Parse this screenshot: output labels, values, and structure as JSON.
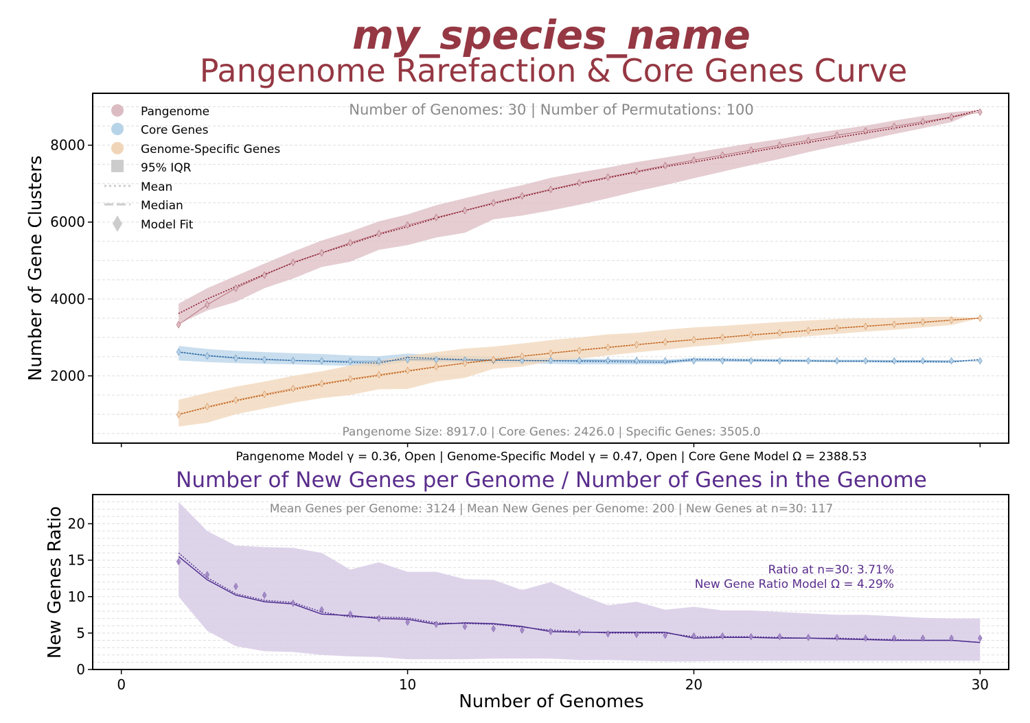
{
  "title": "my_species_name",
  "subtitle": "Pangenome Rarefaction & Core Genes Curve",
  "colors": {
    "title": "#953843",
    "pangenome_band": "#dcbcc3",
    "pangenome_line": "#8b1a2a",
    "core_band": "#b7d3e8",
    "core_line": "#1f5f9e",
    "specific_band": "#f0d5b8",
    "specific_line": "#c05a10",
    "ratio_band": "#d8cce6",
    "ratio_line": "#4b2a8c",
    "ratio_title": "#5a2d8c",
    "info_text": "#888888",
    "grid": "#dddddd"
  },
  "chart_data": [
    {
      "type": "line",
      "panel": "top",
      "ylabel": "Number of Gene Clusters",
      "info_top": "Number of Genomes: 30  |  Number of Permutations: 100",
      "info_bottom": "Pangenome Size: 8917.0  |  Core Genes: 2426.0  |  Specific Genes: 3505.0",
      "model_text": "Pangenome Model γ = 0.36, Open  |  Genome-Specific Model γ = 0.47, Open  |  Core Gene Model Ω = 2388.53",
      "xlim": [
        -1,
        31
      ],
      "ylim": [
        250,
        9350
      ],
      "yticks": [
        2000,
        4000,
        6000,
        8000
      ],
      "grid": true,
      "legend_position": "top-left",
      "legend": [
        "Pangenome",
        "Core Genes",
        "Genome-Specific Genes",
        "95% IQR",
        "Mean",
        "Median",
        "Model Fit"
      ],
      "x": [
        2,
        3,
        4,
        5,
        6,
        7,
        8,
        9,
        10,
        11,
        12,
        13,
        14,
        15,
        16,
        17,
        18,
        19,
        20,
        21,
        22,
        23,
        24,
        25,
        26,
        27,
        28,
        29,
        30
      ],
      "series": [
        {
          "name": "Pangenome",
          "mean": [
            3620,
            4000,
            4320,
            4640,
            4940,
            5200,
            5430,
            5680,
            5880,
            6100,
            6300,
            6480,
            6660,
            6840,
            7000,
            7150,
            7300,
            7440,
            7560,
            7690,
            7820,
            7950,
            8070,
            8200,
            8320,
            8440,
            8570,
            8730,
            8917
          ],
          "lower": [
            3350,
            3700,
            3920,
            4280,
            4530,
            4830,
            4970,
            5280,
            5400,
            5600,
            5720,
            6070,
            6170,
            6300,
            6450,
            6620,
            6800,
            6960,
            7140,
            7310,
            7480,
            7640,
            7820,
            7980,
            8130,
            8290,
            8440,
            8600,
            8917
          ],
          "upper": [
            3880,
            4280,
            4600,
            4920,
            5230,
            5520,
            5750,
            6020,
            6200,
            6440,
            6620,
            6800,
            6960,
            7150,
            7290,
            7420,
            7560,
            7680,
            7800,
            7930,
            8050,
            8160,
            8290,
            8400,
            8510,
            8640,
            8760,
            8860,
            8917
          ],
          "model": [
            3330,
            3850,
            4280,
            4620,
            4950,
            5200,
            5460,
            5700,
            5920,
            6120,
            6300,
            6500,
            6680,
            6850,
            7020,
            7170,
            7320,
            7470,
            7610,
            7740,
            7870,
            8000,
            8120,
            8260,
            8370,
            8490,
            8610,
            8730,
            8860
          ]
        },
        {
          "name": "Core Genes",
          "mean": [
            2620,
            2530,
            2470,
            2430,
            2400,
            2380,
            2350,
            2330,
            2480,
            2450,
            2420,
            2410,
            2400,
            2390,
            2380,
            2370,
            2360,
            2350,
            2430,
            2420,
            2410,
            2400,
            2390,
            2380,
            2380,
            2370,
            2370,
            2360,
            2426
          ],
          "lower": [
            2400,
            2360,
            2330,
            2310,
            2300,
            2280,
            2260,
            2250,
            2380,
            2360,
            2340,
            2330,
            2320,
            2310,
            2300,
            2300,
            2300,
            2300,
            2380,
            2380,
            2370,
            2360,
            2360,
            2350,
            2350,
            2340,
            2340,
            2340,
            2426
          ],
          "upper": [
            2780,
            2700,
            2650,
            2620,
            2590,
            2570,
            2530,
            2510,
            2580,
            2540,
            2520,
            2500,
            2480,
            2460,
            2450,
            2440,
            2430,
            2420,
            2470,
            2460,
            2450,
            2440,
            2430,
            2420,
            2420,
            2410,
            2410,
            2400,
            2426
          ],
          "model": [
            2620,
            2520,
            2460,
            2420,
            2400,
            2390,
            2380,
            2380,
            2420,
            2420,
            2410,
            2400,
            2400,
            2400,
            2400,
            2400,
            2400,
            2390,
            2390,
            2390,
            2390,
            2390,
            2390,
            2390,
            2390,
            2390,
            2390,
            2390,
            2390
          ]
        },
        {
          "name": "Genome-Specific Genes",
          "mean": [
            1000,
            1180,
            1350,
            1500,
            1640,
            1780,
            1900,
            2010,
            2120,
            2230,
            2330,
            2420,
            2510,
            2590,
            2670,
            2740,
            2810,
            2880,
            2940,
            3000,
            3060,
            3120,
            3180,
            3240,
            3290,
            3340,
            3390,
            3450,
            3505
          ],
          "lower": [
            680,
            780,
            1000,
            1150,
            1300,
            1420,
            1500,
            1650,
            1660,
            1850,
            1950,
            2180,
            2240,
            2380,
            2450,
            2530,
            2610,
            2680,
            2760,
            2820,
            2900,
            2970,
            3030,
            3090,
            3150,
            3200,
            3260,
            3320,
            3505
          ],
          "upper": [
            1380,
            1560,
            1720,
            1850,
            2000,
            2120,
            2270,
            2390,
            2520,
            2620,
            2710,
            2760,
            2840,
            2930,
            3000,
            3080,
            3120,
            3200,
            3260,
            3300,
            3350,
            3400,
            3440,
            3480,
            3500,
            3510,
            3530,
            3540,
            3505
          ],
          "model": [
            990,
            1200,
            1370,
            1520,
            1670,
            1800,
            1920,
            2030,
            2140,
            2240,
            2330,
            2420,
            2510,
            2590,
            2660,
            2740,
            2810,
            2880,
            2940,
            3000,
            3070,
            3120,
            3180,
            3240,
            3290,
            3340,
            3400,
            3450,
            3500
          ]
        }
      ]
    },
    {
      "type": "line",
      "panel": "bottom",
      "title": "Number of New Genes per Genome / Number of Genes in the Genome",
      "ylabel": "New Genes Ratio",
      "xlabel": "Number of Genomes",
      "info_top": "Mean Genes per Genome: 3124  |  Mean New Genes per Genome: 200  |  New Genes at n=30: 117",
      "annotation_1": "Ratio at n=30: 3.71%",
      "annotation_2": "New Gene Ratio Model Ω = 4.29%",
      "xlim": [
        -1,
        31
      ],
      "ylim": [
        0,
        24
      ],
      "xticks": [
        0,
        10,
        20,
        30
      ],
      "yticks": [
        0,
        5,
        10,
        15,
        20
      ],
      "grid": true,
      "x": [
        2,
        3,
        4,
        5,
        6,
        7,
        8,
        9,
        10,
        11,
        12,
        13,
        14,
        15,
        16,
        17,
        18,
        19,
        20,
        21,
        22,
        23,
        24,
        25,
        26,
        27,
        28,
        29,
        30
      ],
      "series": [
        {
          "name": "New Genes Ratio",
          "mean": [
            16.0,
            12.6,
            10.4,
            9.5,
            9.2,
            7.9,
            7.2,
            7.2,
            7.1,
            6.4,
            6.3,
            6.2,
            5.8,
            5.4,
            5.2,
            5.0,
            5.0,
            5.0,
            4.5,
            4.5,
            4.5,
            4.4,
            4.3,
            4.3,
            4.2,
            4.1,
            4.0,
            4.0,
            3.71
          ],
          "median": [
            15.5,
            12.3,
            10.2,
            9.3,
            9.0,
            7.6,
            7.4,
            7.0,
            6.9,
            6.2,
            6.4,
            6.3,
            5.9,
            5.2,
            5.1,
            5.1,
            5.1,
            5.1,
            4.3,
            4.4,
            4.4,
            4.3,
            4.3,
            4.2,
            4.1,
            4.0,
            4.0,
            4.0,
            3.71
          ],
          "lower": [
            10.0,
            5.3,
            3.2,
            2.5,
            2.4,
            2.0,
            1.8,
            1.7,
            1.4,
            1.4,
            1.4,
            1.5,
            1.5,
            1.5,
            1.3,
            1.3,
            1.2,
            1.1,
            1.1,
            1.2,
            1.2,
            1.2,
            1.2,
            1.2,
            1.2,
            1.2,
            1.2,
            1.2,
            1.2
          ],
          "upper": [
            23.0,
            19.0,
            17.0,
            16.8,
            16.7,
            16.0,
            13.7,
            14.7,
            13.4,
            13.4,
            12.4,
            12.3,
            10.9,
            12.0,
            10.3,
            8.8,
            9.3,
            8.2,
            8.6,
            8.1,
            8.1,
            7.9,
            7.7,
            7.5,
            7.5,
            7.3,
            7.1,
            7.0,
            7.0
          ],
          "model": [
            14.8,
            13.0,
            11.4,
            10.2,
            9.1,
            8.2,
            7.6,
            7.0,
            6.5,
            6.2,
            5.9,
            5.6,
            5.4,
            5.2,
            5.1,
            4.9,
            4.8,
            4.7,
            4.6,
            4.6,
            4.5,
            4.5,
            4.4,
            4.4,
            4.3,
            4.3,
            4.3,
            4.3,
            4.29
          ]
        }
      ]
    }
  ]
}
